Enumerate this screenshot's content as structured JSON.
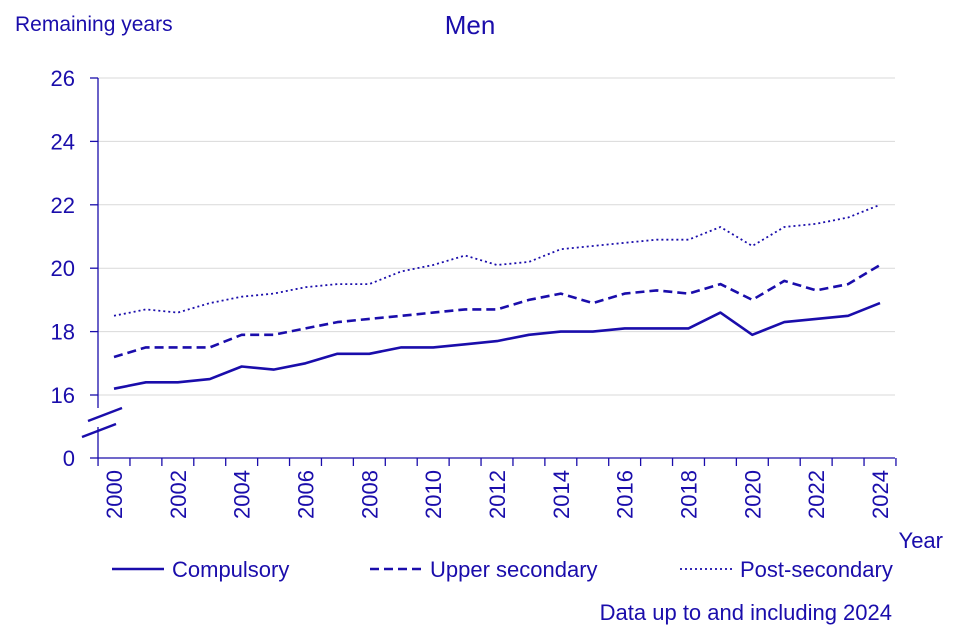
{
  "chart_data": {
    "type": "line",
    "title": "Men",
    "ylabel": "Remaining years",
    "xlabel": "Year",
    "note": "Data up to and including 2024",
    "x": [
      2000,
      2001,
      2002,
      2003,
      2004,
      2005,
      2006,
      2007,
      2008,
      2009,
      2010,
      2011,
      2012,
      2013,
      2014,
      2015,
      2016,
      2017,
      2018,
      2019,
      2020,
      2021,
      2022,
      2023,
      2024
    ],
    "x_tick_labels": [
      "2000",
      "2002",
      "2004",
      "2006",
      "2008",
      "2010",
      "2012",
      "2014",
      "2016",
      "2018",
      "2020",
      "2022",
      "2024"
    ],
    "y_tick_labels": [
      "0",
      "16",
      "18",
      "20",
      "22",
      "24",
      "26"
    ],
    "y_axis_break": true,
    "ylim_display": [
      16,
      26
    ],
    "grid": "horizontal",
    "legend_position": "bottom",
    "colors": {
      "series": "#1a0dab",
      "grid": "#d9d9d9"
    },
    "series": [
      {
        "name": "Compulsory",
        "style": "solid",
        "values": [
          16.2,
          16.4,
          16.4,
          16.5,
          16.9,
          16.8,
          17.0,
          17.3,
          17.3,
          17.5,
          17.5,
          17.6,
          17.7,
          17.9,
          18.0,
          18.0,
          18.1,
          18.1,
          18.1,
          18.6,
          17.9,
          18.3,
          18.4,
          18.5,
          18.9
        ]
      },
      {
        "name": "Upper secondary",
        "style": "dashed",
        "values": [
          17.2,
          17.5,
          17.5,
          17.5,
          17.9,
          17.9,
          18.1,
          18.3,
          18.4,
          18.5,
          18.6,
          18.7,
          18.7,
          19.0,
          19.2,
          18.9,
          19.2,
          19.3,
          19.2,
          19.5,
          19.0,
          19.6,
          19.3,
          19.5,
          20.1
        ]
      },
      {
        "name": "Post-secondary",
        "style": "dotted",
        "values": [
          18.5,
          18.7,
          18.6,
          18.9,
          19.1,
          19.2,
          19.4,
          19.5,
          19.5,
          19.9,
          20.1,
          20.4,
          20.1,
          20.2,
          20.6,
          20.7,
          20.8,
          20.9,
          20.9,
          21.3,
          20.7,
          21.3,
          21.4,
          21.6,
          22.0
        ]
      }
    ]
  }
}
